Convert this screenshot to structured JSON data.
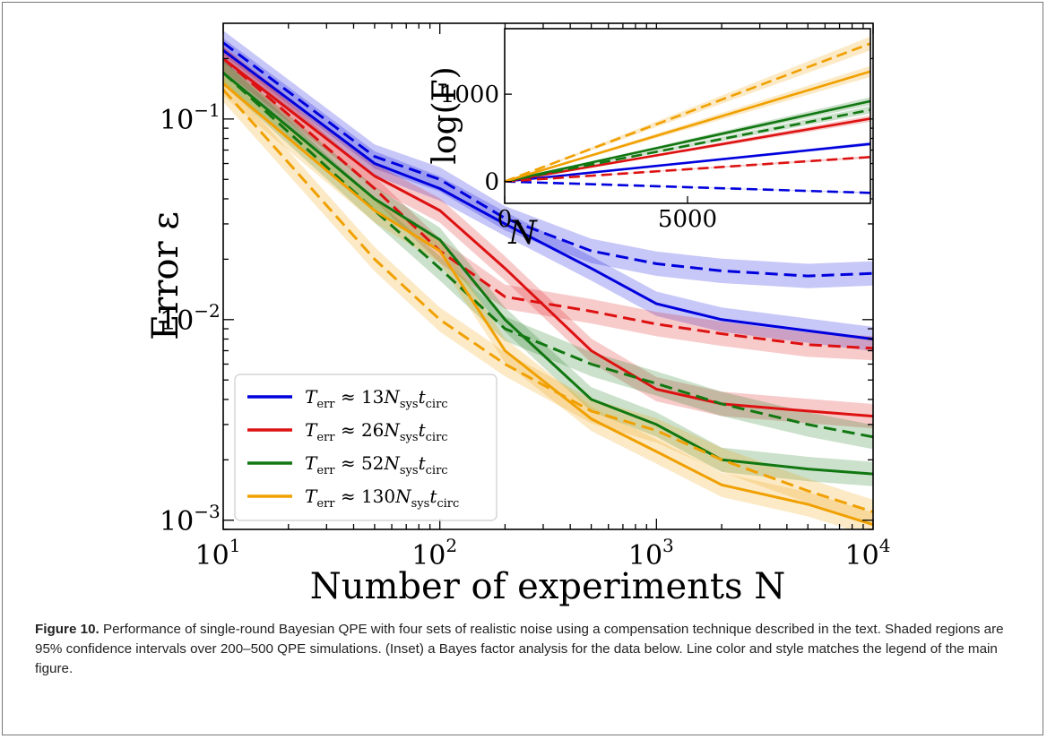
{
  "chart_data": [
    {
      "type": "line",
      "xlabel": "Number of experiments N",
      "ylabel": "Error ε",
      "xscale": "log",
      "yscale": "log",
      "xlim": [
        10,
        10000
      ],
      "ylim": [
        0.0009,
        0.3
      ],
      "x_ticks": [
        {
          "value": 10,
          "base": "10",
          "exp": "1"
        },
        {
          "value": 100,
          "base": "10",
          "exp": "2"
        },
        {
          "value": 1000,
          "base": "10",
          "exp": "3"
        },
        {
          "value": 10000,
          "base": "10",
          "exp": "4"
        }
      ],
      "y_ticks": [
        {
          "value": 0.1,
          "base": "10",
          "exp": "−1"
        },
        {
          "value": 0.01,
          "base": "10",
          "exp": "−2"
        },
        {
          "value": 0.001,
          "base": "10",
          "exp": "−3"
        }
      ],
      "legend_position": "lower-left",
      "x": [
        10,
        50,
        100,
        200,
        500,
        1000,
        2000,
        5000,
        10000
      ],
      "series": [
        {
          "name": "T_err ≈ 13N_sys t_circ",
          "color": "#0000dd",
          "style": "solid",
          "values": [
            0.22,
            0.06,
            0.045,
            0.03,
            0.018,
            0.012,
            0.01,
            0.0088,
            0.008
          ]
        },
        {
          "name": "T_err ≈ 13N_sys t_circ",
          "color": "#0000dd",
          "style": "dashed",
          "values": [
            0.24,
            0.065,
            0.05,
            0.032,
            0.022,
            0.019,
            0.0175,
            0.0165,
            0.017
          ]
        },
        {
          "name": "T_err ≈ 26N_sys t_circ",
          "color": "#dd1111",
          "style": "solid",
          "values": [
            0.2,
            0.052,
            0.035,
            0.018,
            0.007,
            0.0045,
            0.0038,
            0.0035,
            0.0033
          ]
        },
        {
          "name": "T_err ≈ 26N_sys t_circ",
          "color": "#dd1111",
          "style": "dashed",
          "values": [
            0.2,
            0.045,
            0.022,
            0.013,
            0.011,
            0.0095,
            0.0085,
            0.0075,
            0.0072
          ]
        },
        {
          "name": "T_err ≈ 52N_sys t_circ",
          "color": "#117711",
          "style": "solid",
          "values": [
            0.17,
            0.04,
            0.025,
            0.01,
            0.004,
            0.003,
            0.002,
            0.0018,
            0.0017
          ]
        },
        {
          "name": "T_err ≈ 52N_sys t_circ",
          "color": "#117711",
          "style": "dashed",
          "values": [
            0.17,
            0.035,
            0.018,
            0.009,
            0.006,
            0.0048,
            0.0038,
            0.003,
            0.0026
          ]
        },
        {
          "name": "T_err ≈ 130N_sys t_circ",
          "color": "#f0a000",
          "style": "solid",
          "values": [
            0.15,
            0.035,
            0.022,
            0.007,
            0.0032,
            0.0022,
            0.0015,
            0.0012,
            0.00095
          ]
        },
        {
          "name": "T_err ≈ 130N_sys t_circ",
          "color": "#f0a000",
          "style": "dashed",
          "values": [
            0.14,
            0.02,
            0.01,
            0.006,
            0.0035,
            0.0028,
            0.002,
            0.0014,
            0.0011
          ]
        }
      ],
      "legend": [
        {
          "color": "#0000dd",
          "num": "13"
        },
        {
          "color": "#dd1111",
          "num": "26"
        },
        {
          "color": "#117711",
          "num": "52"
        },
        {
          "color": "#f0a000",
          "num": "130"
        }
      ]
    },
    {
      "type": "line",
      "xlabel": "N",
      "ylabel": "log(F)",
      "xlim": [
        0,
        10000
      ],
      "ylim": [
        -250,
        1750
      ],
      "x_ticks": [
        0,
        5000
      ],
      "y_ticks": [
        0,
        1000
      ],
      "x": [
        0,
        10000
      ],
      "series": [
        {
          "color": "#0000dd",
          "style": "solid",
          "values": [
            0,
            430
          ]
        },
        {
          "color": "#0000dd",
          "style": "dashed",
          "values": [
            0,
            -130
          ]
        },
        {
          "color": "#dd1111",
          "style": "solid",
          "values": [
            0,
            720
          ]
        },
        {
          "color": "#dd1111",
          "style": "dashed",
          "values": [
            0,
            280
          ]
        },
        {
          "color": "#117711",
          "style": "solid",
          "values": [
            0,
            920
          ]
        },
        {
          "color": "#117711",
          "style": "dashed",
          "values": [
            0,
            820
          ]
        },
        {
          "color": "#f0a000",
          "style": "solid",
          "values": [
            0,
            1260
          ]
        },
        {
          "color": "#f0a000",
          "style": "dashed",
          "values": [
            0,
            1580
          ]
        }
      ]
    }
  ],
  "caption": {
    "label": "Figure 10.",
    "text": " Performance of single-round Bayesian QPE with four sets of realistic noise using a compensation technique described in the text. Shaded regions are 95% confidence intervals over 200–500 QPE simulations. (Inset) a Bayes factor analysis for the data below. Line color and style matches the legend of the main figure."
  }
}
